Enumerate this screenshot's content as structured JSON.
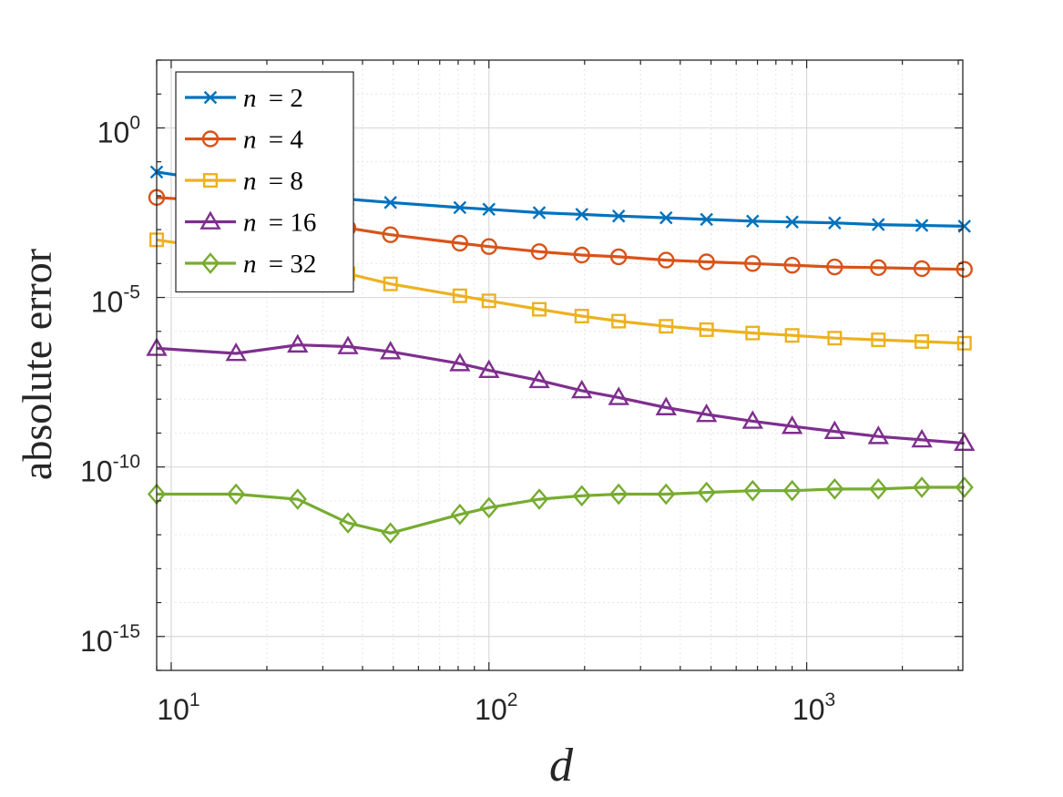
{
  "chart_data": {
    "type": "line",
    "xscale": "log",
    "yscale": "log",
    "xlabel": "d",
    "ylabel": "absolute error",
    "xlim": [
      9,
      3100
    ],
    "ylim": [
      1e-16,
      100.0
    ],
    "grid": true,
    "legend_position": "top-left",
    "x_ticks": [
      {
        "value": 10,
        "base": "10",
        "exp": "1"
      },
      {
        "value": 100,
        "base": "10",
        "exp": "2"
      },
      {
        "value": 1000,
        "base": "10",
        "exp": "3"
      }
    ],
    "y_ticks": [
      {
        "value": 1,
        "base": "10",
        "exp": "0"
      },
      {
        "value": 1e-05,
        "base": "10",
        "exp": "-5"
      },
      {
        "value": 1e-10,
        "base": "10",
        "exp": "-10"
      },
      {
        "value": 1e-15,
        "base": "10",
        "exp": "-15"
      }
    ],
    "x": [
      9,
      16,
      25,
      36,
      49,
      81,
      100,
      144,
      196,
      256,
      361,
      484,
      676,
      900,
      1225,
      1681,
      2304,
      3136
    ],
    "series": [
      {
        "name": "n = 2",
        "n_label": "n",
        "eq_label": "= 2",
        "color": "#0072BD",
        "marker": "x",
        "values": [
          0.0501,
          0.0219,
          0.0126,
          0.00794,
          0.00631,
          0.00447,
          0.00398,
          0.00316,
          0.00282,
          0.00251,
          0.00224,
          0.002,
          0.00178,
          0.00168,
          0.00158,
          0.00141,
          0.00133,
          0.00126
        ]
      },
      {
        "name": "n = 4",
        "n_label": "n",
        "eq_label": "= 4",
        "color": "#D95319",
        "marker": "o",
        "values": [
          0.00891,
          0.00631,
          0.00282,
          0.00112,
          0.000708,
          0.000398,
          0.000316,
          0.000224,
          0.000178,
          0.000158,
          0.000126,
          0.000112,
          0.0001,
          8.91e-05,
          7.94e-05,
          7.59e-05,
          7.08e-05,
          6.76e-05
        ]
      },
      {
        "name": "n = 8",
        "n_label": "n",
        "eq_label": "= 8",
        "color": "#EDB120",
        "marker": "s",
        "values": [
          0.000501,
          0.000224,
          0.000112,
          5.01e-05,
          2.51e-05,
          1.12e-05,
          7.94e-06,
          4.47e-06,
          2.82e-06,
          2e-06,
          1.41e-06,
          1.12e-06,
          8.91e-07,
          7.59e-07,
          6.31e-07,
          5.62e-07,
          5.01e-07,
          4.47e-07
        ]
      },
      {
        "name": "n = 16",
        "n_label": "n",
        "eq_label": "= 16",
        "color": "#7E2F8E",
        "marker": "^",
        "values": [
          3.16e-07,
          2.24e-07,
          3.98e-07,
          3.55e-07,
          2.51e-07,
          1.12e-07,
          7.08e-08,
          3.55e-08,
          1.78e-08,
          1.12e-08,
          5.62e-09,
          3.55e-09,
          2.24e-09,
          1.58e-09,
          1.12e-09,
          7.94e-10,
          6.31e-10,
          5.01e-10
        ]
      },
      {
        "name": "n = 32",
        "n_label": "n",
        "eq_label": "= 32",
        "color": "#77AC30",
        "marker": "d",
        "values": [
          1.58e-11,
          1.58e-11,
          1.12e-11,
          2.24e-12,
          1.12e-12,
          3.98e-12,
          6.31e-12,
          1.12e-11,
          1.41e-11,
          1.58e-11,
          1.58e-11,
          1.78e-11,
          2e-11,
          2e-11,
          2.24e-11,
          2.24e-11,
          2.51e-11,
          2.51e-11
        ]
      }
    ]
  }
}
